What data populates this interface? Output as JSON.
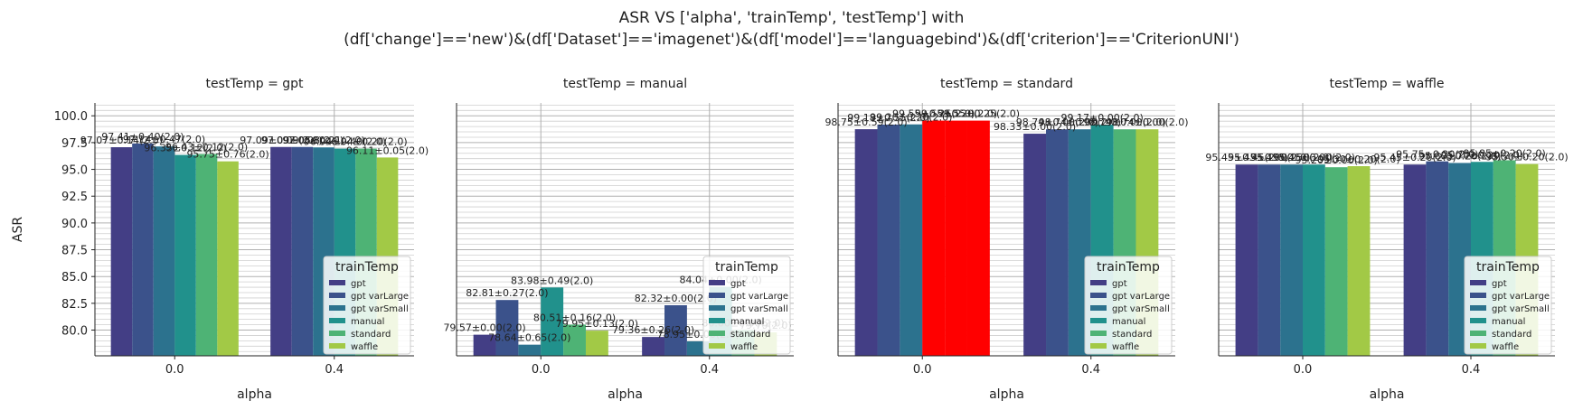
{
  "figure": {
    "title_line1": "ASR VS ['alpha', 'trainTemp', 'testTemp'] with",
    "title_line2": "(df['change']=='new')&(df['Dataset']=='imagenet')&(df['model']=='languagebind')&(df['criterion']=='CriterionUNI')"
  },
  "chart_data": {
    "type": "bar",
    "ylabel": "ASR",
    "xlabel": "alpha",
    "categories": [
      "0.0",
      "0.4"
    ],
    "ylim": [
      77.6,
      101.2
    ],
    "yticks": [
      "80.0",
      "82.5",
      "85.0",
      "87.5",
      "90.0",
      "92.5",
      "95.0",
      "97.5",
      "100.0"
    ],
    "legend": {
      "title": "trainTemp",
      "entries": [
        "gpt",
        "gpt varLarge",
        "gpt varSmall",
        "manual",
        "standard",
        "waffle"
      ],
      "placement": "lower right"
    },
    "series_colors": [
      "#433e85",
      "#3b528b",
      "#2c728e",
      "#21918c",
      "#4eb375",
      "#a2c946"
    ],
    "highlight_color": "#ff0000",
    "grid": true,
    "panels": [
      {
        "title": "testTemp = gpt",
        "values": [
          [
            97.07,
            97.41,
            97.14,
            96.35,
            96.43,
            95.75
          ],
          [
            97.09,
            97.09,
            97.05,
            96.94,
            96.94,
            96.11
          ]
        ],
        "labels": [
          [
            "97.07±0.14(2.0)",
            "97.41±0.40(2.0)",
            "97.14±0.47(2.0)",
            "96.35±0.12(2.0)",
            "96.43±0.12(2.0)",
            "95.75±0.76(2.0)"
          ],
          [
            "97.09±0.09(2.0)",
            "97.09±0.08(2.0)",
            "97.05±0.21(2.0)",
            "96.94±0.40(2.0)",
            "96.94±0.20(2.0)",
            "96.11±0.05(2.0)"
          ]
        ]
      },
      {
        "title": "testTemp = manual",
        "values": [
          [
            79.57,
            82.81,
            78.64,
            83.98,
            80.51,
            79.95
          ],
          [
            79.36,
            82.32,
            78.95,
            84.04,
            80.0,
            79.79
          ]
        ],
        "labels": [
          [
            "79.57±0.00(2.0)",
            "82.81±0.27(2.0)",
            "78.64±0.65(2.0)",
            "83.98±0.49(2.0)",
            "80.51±0.16(2.0)",
            "79.95±0.13(2.0)"
          ],
          [
            "79.36±0.26(2.0)",
            "82.32±0.00(2.0)",
            "78.95±0.00(2.0)",
            "84.04±0.00(2.0)",
            "80.00±0.00(2.0)",
            "79.79(2.0)"
          ]
        ]
      },
      {
        "title": "testTemp = standard",
        "values": [
          [
            98.75,
            99.18,
            99.2,
            99.55,
            99.55,
            99.55
          ],
          [
            98.33,
            98.74,
            98.74,
            99.17,
            98.74,
            98.74
          ]
        ],
        "labels": [
          [
            "98.75±0.59(2.0)",
            "99.18±0.55(2.0)",
            "99.20±0.20(2.0)",
            "99.55±0.25(2.0)",
            "99.55±0.20(2.0)",
            "99.55±0.25(2.0)"
          ],
          [
            "98.33±0.00(2.0)",
            "98.74±0.00(2.0)",
            "98.74±0.00(2.0)",
            "99.17±0.00(2.0)",
            "98.74±0.00(2.0)",
            "98.74±0.00(2.0)"
          ]
        ],
        "highlight": [
          [
            0,
            3
          ],
          [
            0,
            4
          ],
          [
            0,
            5
          ]
        ]
      },
      {
        "title": "testTemp = waffle",
        "values": [
          [
            95.45,
            95.45,
            95.45,
            95.45,
            95.2,
            95.3
          ],
          [
            95.45,
            95.75,
            95.6,
            95.7,
            95.85,
            95.5
          ]
        ],
        "labels": [
          [
            "95.45±0.45(2.0)",
            "95.45±0.00(2.0)",
            "95.45±0.50(2.0)",
            "95.45±0.00(2.0)",
            "95.20±0.00(2.0)",
            "95.30±0.20(2.0)"
          ],
          [
            "95.45±0.20(2.0)",
            "95.75±0.20(2.0)",
            "95.60±0.20(2.0)",
            "95.70±0.20(2.0)",
            "95.85±0.20(2.0)",
            "95.50±0.20(2.0)"
          ]
        ]
      }
    ]
  }
}
